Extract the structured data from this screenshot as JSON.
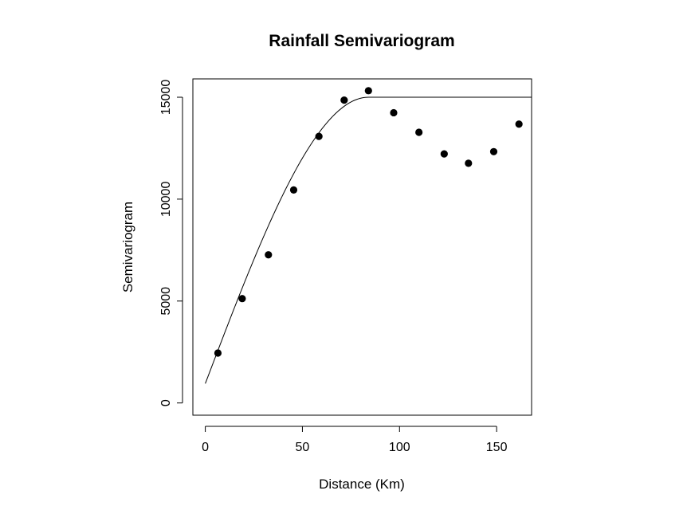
{
  "chart_data": {
    "type": "scatter",
    "title": "Rainfall Semivariogram",
    "xlabel": "Distance (Km)",
    "ylabel": "Semivariogram",
    "xlim": [
      -6.4,
      168
    ],
    "ylim": [
      -600,
      15900
    ],
    "x_ticks": [
      0,
      50,
      100,
      150
    ],
    "y_ticks": [
      0,
      5000,
      10000,
      15000
    ],
    "grid": false,
    "legend": "none",
    "series": [
      {
        "type": "scatter",
        "x": [
          6.5,
          19.0,
          32.5,
          45.5,
          58.5,
          71.5,
          84.0,
          97.0,
          110.0,
          123.0,
          135.5,
          148.5,
          161.5
        ],
        "y": [
          2450,
          5120,
          7270,
          10450,
          13080,
          14860,
          15320,
          14240,
          13280,
          12220,
          11760,
          12330,
          13680
        ]
      },
      {
        "type": "line",
        "model": "spherical",
        "nugget": 950,
        "sill": 15000,
        "range": 84,
        "x_start": 0,
        "x_end": 168
      }
    ]
  }
}
